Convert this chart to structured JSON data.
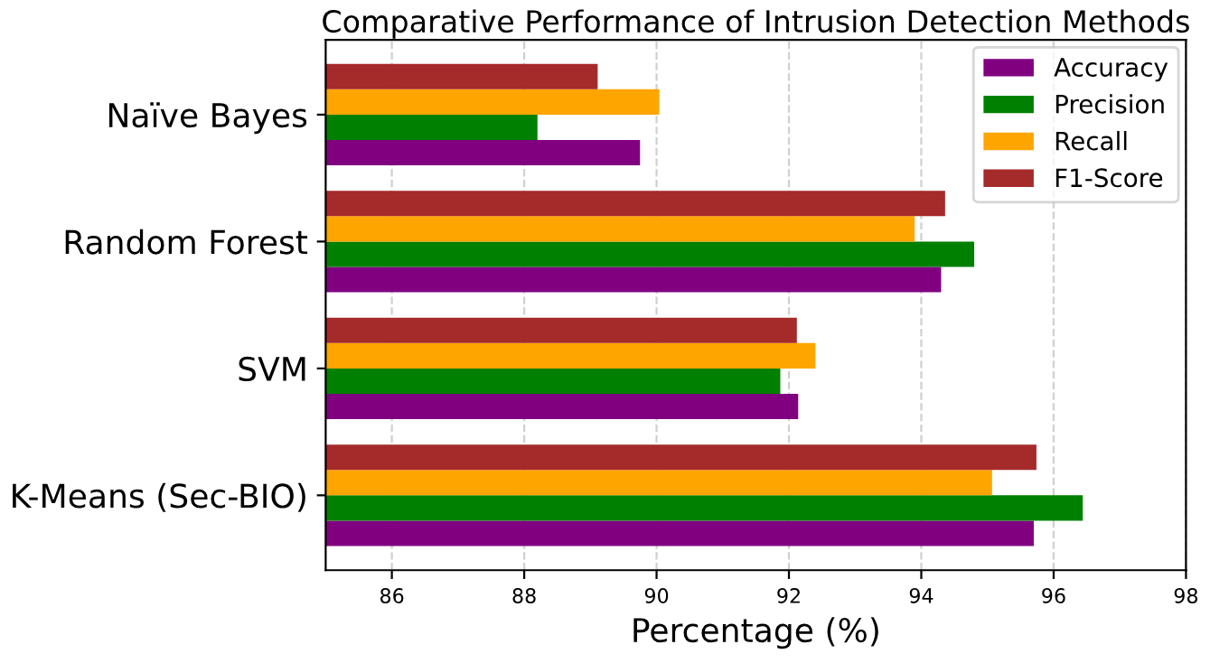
{
  "chart_data": {
    "type": "bar",
    "orientation": "horizontal",
    "title": "Comparative Performance of Intrusion Detection Methods",
    "xlabel": "Percentage (%)",
    "categories": [
      "Naïve Bayes",
      "Random Forest",
      "SVM",
      "K-Means (Sec-BIO)"
    ],
    "series": [
      {
        "name": "Accuracy",
        "color": "#800080",
        "values": [
          89.75,
          94.3,
          92.14,
          95.7
        ]
      },
      {
        "name": "Precision",
        "color": "#008000",
        "values": [
          88.2,
          94.8,
          91.87,
          96.44
        ]
      },
      {
        "name": "Recall",
        "color": "#ffa500",
        "values": [
          90.04,
          93.9,
          92.4,
          95.07
        ]
      },
      {
        "name": "F1-Score",
        "color": "#a52a2a",
        "values": [
          89.11,
          94.36,
          92.12,
          95.74
        ]
      }
    ],
    "xlim": [
      85,
      98
    ],
    "xticks": [
      86,
      88,
      90,
      92,
      94,
      96,
      98
    ],
    "grid": "x",
    "legend": "top right"
  }
}
